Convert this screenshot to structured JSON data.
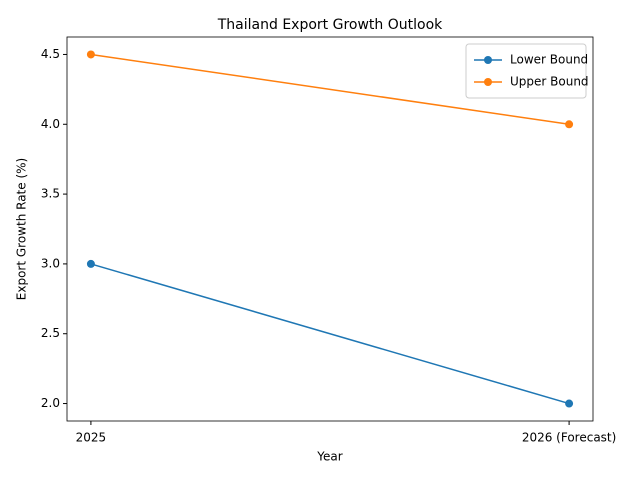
{
  "chart_data": {
    "type": "line",
    "title": "Thailand Export Growth Outlook",
    "x_label": "Year",
    "y_label": "Export Growth Rate (%)",
    "categories": [
      "2025",
      "2026 (Forecast)"
    ],
    "series": [
      {
        "name": "Lower Bound",
        "color": "#1f77b4",
        "values": [
          3.0,
          2.0
        ]
      },
      {
        "name": "Upper Bound",
        "color": "#ff7f0e",
        "values": [
          4.5,
          4.0
        ]
      }
    ],
    "ylim": [
      1.875,
      4.625
    ],
    "yticks": [
      {
        "value": 2,
        "label": "2.0"
      },
      2.5,
      {
        "value": 3,
        "label": "3.0"
      },
      3.5,
      {
        "value": 4,
        "label": "4.0"
      },
      4.5
    ],
    "grid": false,
    "legend": "upper right"
  }
}
